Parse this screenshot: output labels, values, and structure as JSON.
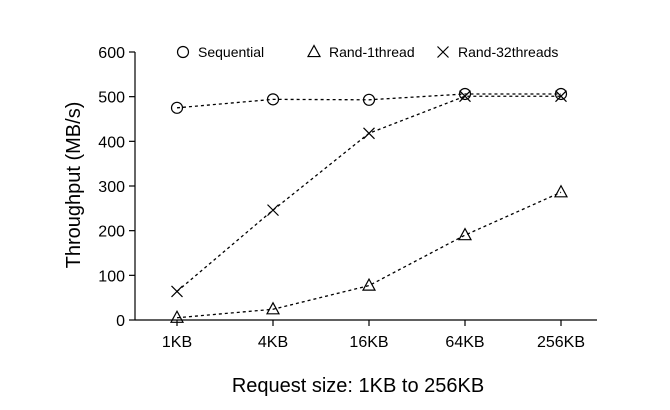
{
  "chart_data": {
    "type": "line",
    "categories": [
      "1KB",
      "4KB",
      "16KB",
      "64KB",
      "256KB"
    ],
    "xlabel": "Request size: 1KB to 256KB",
    "ylabel": "Throughput (MB/s)",
    "ylim": [
      0,
      600
    ],
    "yticks": [
      0,
      100,
      200,
      300,
      400,
      500,
      600
    ],
    "grid": false,
    "legend_position": "top",
    "series": [
      {
        "name": "Sequential",
        "marker": "circle",
        "values": [
          475,
          494,
          493,
          506,
          506
        ]
      },
      {
        "name": "Rand-1thread",
        "marker": "triangle",
        "values": [
          5,
          24,
          77,
          190,
          286
        ]
      },
      {
        "name": "Rand-32threads",
        "marker": "x",
        "values": [
          64,
          246,
          418,
          501,
          501
        ]
      }
    ]
  }
}
